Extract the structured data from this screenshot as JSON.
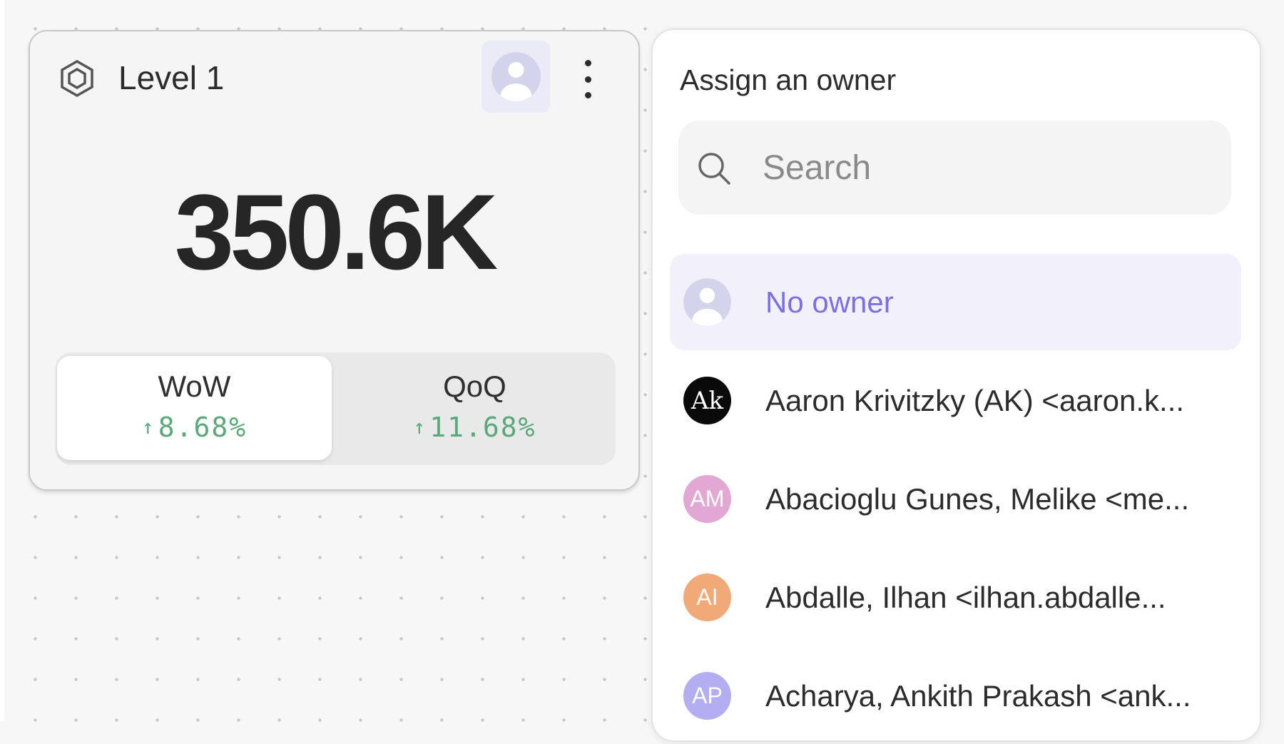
{
  "card": {
    "title": "Level 1",
    "icon": "hexagon-icon",
    "value": "350.6K",
    "comparisons": [
      {
        "label": "WoW",
        "change": "8.68%",
        "direction": "up",
        "active": true
      },
      {
        "label": "QoQ",
        "change": "11.68%",
        "direction": "up",
        "active": false
      }
    ],
    "arrow": "↑"
  },
  "panel": {
    "title": "Assign an owner",
    "search_placeholder": "Search",
    "options": [
      {
        "label": "No owner",
        "selected": true
      },
      {
        "label": "Aaron Krivitzky (AK) <aaron.k...",
        "initials": "Ak",
        "color": "#0a0a0a"
      },
      {
        "label": "Abacioglu Gunes, Melike <me...",
        "initials": "AM",
        "color": "#e2a8d3"
      },
      {
        "label": "Abdalle, Ilhan <ilhan.abdalle...",
        "initials": "AI",
        "color": "#f2a978"
      },
      {
        "label": "Acharya, Ankith Prakash <ank...",
        "initials": "AP",
        "color": "#b3aef2"
      }
    ]
  },
  "colors": {
    "accent": "#7a6fe3",
    "positive": "#5aa97a",
    "selected_bg": "#f2f1fb"
  }
}
